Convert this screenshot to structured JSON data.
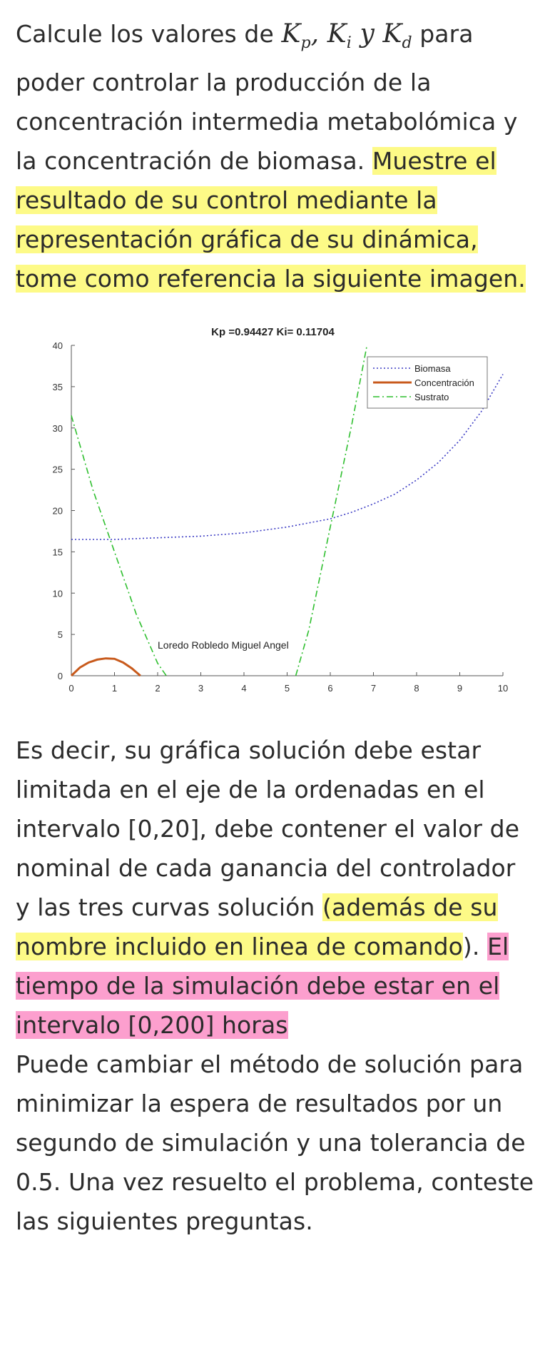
{
  "intro": {
    "lead": "Calcule los valores de ",
    "kp": "K",
    "kp_sub": "p",
    "comma1": ", ",
    "ki": "K",
    "ki_sub": "i",
    "y": " y ",
    "kd": "K",
    "kd_sub": "d",
    "tail": " para poder controlar la producción de la concentración intermedia metabolómica y la concentración de biomasa. ",
    "highlight": "Muestre el resultado de su control mediante la representación gráfica de su dinámica, tome como referencia la siguiente imagen."
  },
  "para2": {
    "plain": "Es decir, su gráfica solución debe estar limitada en el eje de la ordenadas en el intervalo [0,20], debe contener el valor de nominal de cada ganancia del controlador y las tres curvas solución ",
    "yellow": "(además de su nombre incluido en linea de comando",
    "mid": "). ",
    "pink": "El tiempo de la simulación debe estar en el intervalo [0,200] horas"
  },
  "para3": {
    "text": "Puede cambiar el método de solución para minimizar la espera de resultados por un segundo de simulación y una tolerancia de 0.5. Una vez resuelto el problema, conteste las siguientes preguntas."
  },
  "chart_data": {
    "type": "line",
    "title": "Kp =0.94427 Ki= 0.11704",
    "annotation": "Loredo Robledo Miguel Angel",
    "xlim": [
      0,
      10
    ],
    "ylim": [
      0,
      40
    ],
    "xticks": [
      0,
      1,
      2,
      3,
      4,
      5,
      6,
      7,
      8,
      9,
      10
    ],
    "yticks": [
      0,
      5,
      10,
      15,
      20,
      25,
      30,
      35,
      40
    ],
    "grid": false,
    "legend_position": "top-right",
    "series": [
      {
        "name": "Biomasa",
        "color": "#3b3bc4",
        "style": "dotted",
        "x": [
          0,
          1,
          2,
          3,
          4,
          5,
          6,
          6.5,
          7,
          7.5,
          8,
          8.5,
          9,
          9.5,
          10
        ],
        "y": [
          16.5,
          16.5,
          16.7,
          16.9,
          17.3,
          18.0,
          19.0,
          19.8,
          20.8,
          22.0,
          23.7,
          25.8,
          28.5,
          32.0,
          36.5
        ]
      },
      {
        "name": "Concentración",
        "color": "#c85a1c",
        "style": "solid",
        "x": [
          0,
          0.2,
          0.4,
          0.6,
          0.8,
          1.0,
          1.2,
          1.4,
          1.6
        ],
        "y": [
          0,
          1.0,
          1.6,
          1.95,
          2.1,
          2.05,
          1.6,
          0.9,
          0
        ]
      },
      {
        "name": "Sustrato",
        "color": "#2fbf2f",
        "style": "dashdot",
        "x": [
          0,
          0.5,
          1.0,
          1.5,
          2.0,
          2.2
        ],
        "y": [
          31.5,
          22.5,
          15.0,
          7.5,
          1.5,
          0
        ],
        "x2": [
          5.2,
          5.5,
          6.0,
          6.5,
          6.85
        ],
        "y2": [
          0,
          5.5,
          18.0,
          30.5,
          40
        ]
      }
    ]
  }
}
